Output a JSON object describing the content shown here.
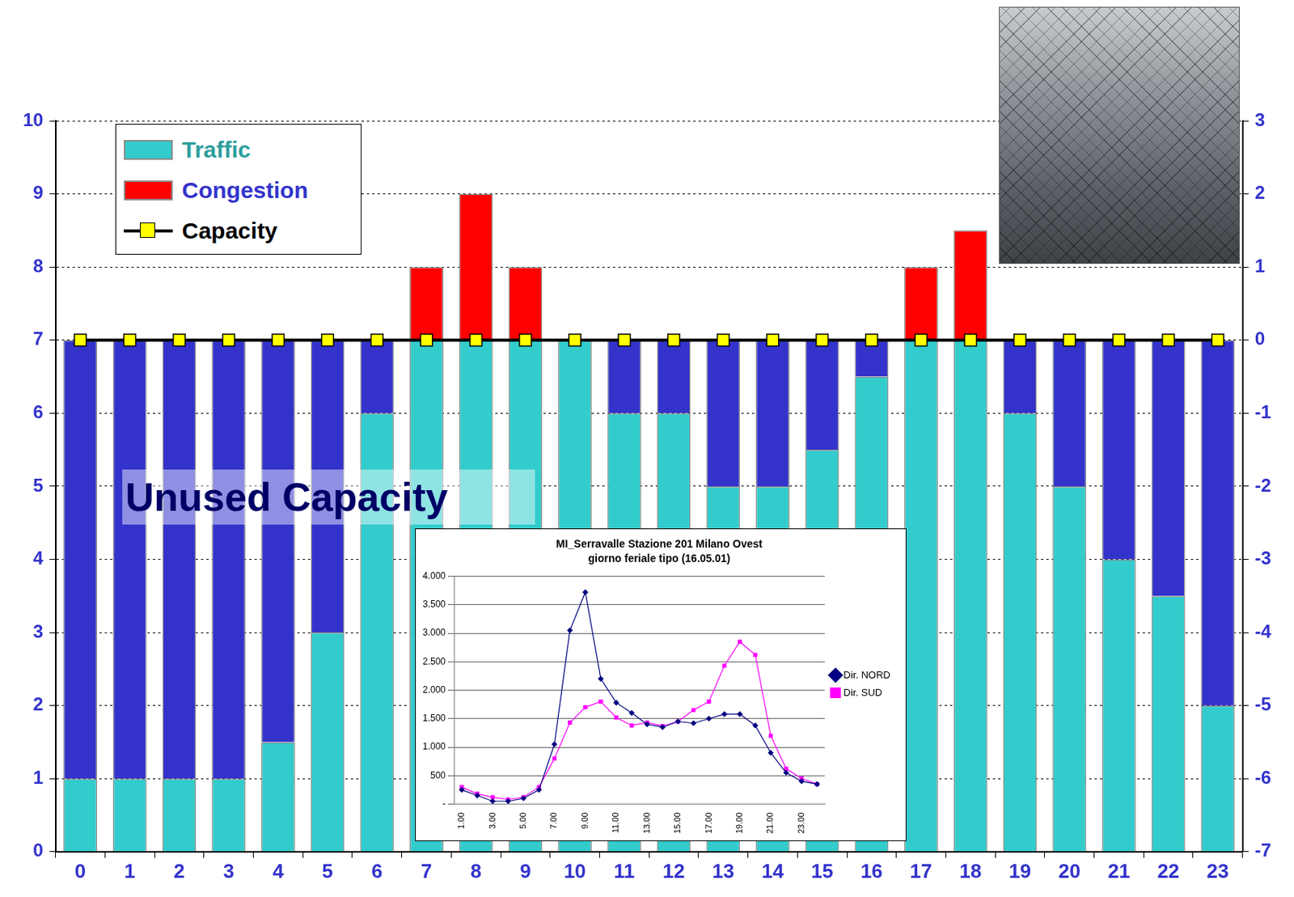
{
  "chart_data": [
    {
      "type": "bar",
      "stacked": true,
      "categories": [
        "0",
        "1",
        "2",
        "3",
        "4",
        "5",
        "6",
        "7",
        "8",
        "9",
        "10",
        "11",
        "12",
        "13",
        "14",
        "15",
        "16",
        "17",
        "18",
        "19",
        "20",
        "21",
        "22",
        "23"
      ],
      "series": [
        {
          "name": "Traffic",
          "color": "#33CCCC",
          "values": [
            1,
            1,
            1,
            1,
            1.5,
            3,
            6,
            7,
            7,
            7,
            7,
            6,
            6,
            5,
            5,
            5.5,
            6.5,
            7,
            7,
            6,
            5,
            4,
            3.5,
            2
          ]
        },
        {
          "color": "#3333CC",
          "values": [
            6,
            6,
            6,
            6,
            5.5,
            4,
            1,
            0,
            0,
            0,
            0,
            1,
            1,
            2,
            2,
            1.5,
            0.5,
            0,
            0,
            1,
            2,
            3,
            3.5,
            5
          ]
        },
        {
          "name": "Congestion",
          "color": "#FF0000",
          "values": [
            0,
            0,
            0,
            0,
            0,
            0,
            0,
            1,
            2,
            1,
            0,
            0,
            0,
            0,
            0,
            0,
            0,
            1,
            1.5,
            0,
            0,
            0,
            0,
            0
          ]
        },
        {
          "name": "Capacity",
          "type": "line",
          "color": "#000000",
          "marker": "square",
          "values": [
            7,
            7,
            7,
            7,
            7,
            7,
            7,
            7,
            7,
            7,
            7,
            7,
            7,
            7,
            7,
            7,
            7,
            7,
            7,
            7,
            7,
            7,
            7,
            7
          ]
        }
      ],
      "ylim": [
        0,
        10
      ],
      "yticks": [
        0,
        1,
        2,
        3,
        4,
        5,
        6,
        7,
        8,
        9,
        10
      ],
      "y2lim": [
        -7,
        3
      ],
      "y2ticks": [
        -7,
        -6,
        -5,
        -4,
        -3,
        -2,
        -1,
        0,
        1,
        2,
        3
      ],
      "grid": true,
      "legend": "upper left",
      "annotations": [
        {
          "text": "Unused Capacity"
        }
      ]
    },
    {
      "type": "line",
      "title": "MI_Serravalle Stazione 201 Milano Ovest",
      "subtitle": "giorno feriale tipo (16.05.01)",
      "categories": [
        "1.00",
        null,
        "3.00",
        null,
        "5.00",
        null,
        "7.00",
        null,
        "9.00",
        null,
        "11.00",
        null,
        "13.00",
        null,
        "15.00",
        null,
        "17.00",
        null,
        "19.00",
        null,
        "21.00",
        null,
        "23.00",
        null
      ],
      "series": [
        {
          "name": "Dir. NORD",
          "color": "#000080",
          "marker": "diamond",
          "values": [
            250,
            150,
            50,
            50,
            100,
            250,
            1050,
            3050,
            3720,
            2200,
            1780,
            1600,
            1400,
            1350,
            1450,
            1420,
            1500,
            1580,
            1580,
            1380,
            900,
            550,
            400,
            350
          ]
        },
        {
          "name": "Dir. SUD",
          "color": "#FF00FF",
          "marker": "square",
          "values": [
            300,
            180,
            120,
            80,
            120,
            300,
            800,
            1430,
            1700,
            1800,
            1520,
            1380,
            1430,
            1370,
            1450,
            1650,
            1800,
            2430,
            2850,
            2620,
            1200,
            620,
            450,
            350
          ]
        }
      ],
      "ylim": [
        0,
        4000
      ],
      "yticks": [
        {
          "value": 0,
          "label": "-"
        },
        500,
        {
          "value": 1000,
          "label": "1.000"
        },
        {
          "value": 1500,
          "label": "1.500"
        },
        {
          "value": 2000,
          "label": "2.000"
        },
        {
          "value": 2500,
          "label": "2.500"
        },
        {
          "value": 3000,
          "label": "3.000"
        },
        {
          "value": 3500,
          "label": "3.500"
        },
        {
          "value": 4000,
          "label": "4.000"
        }
      ],
      "grid": true,
      "legend": "right"
    }
  ]
}
